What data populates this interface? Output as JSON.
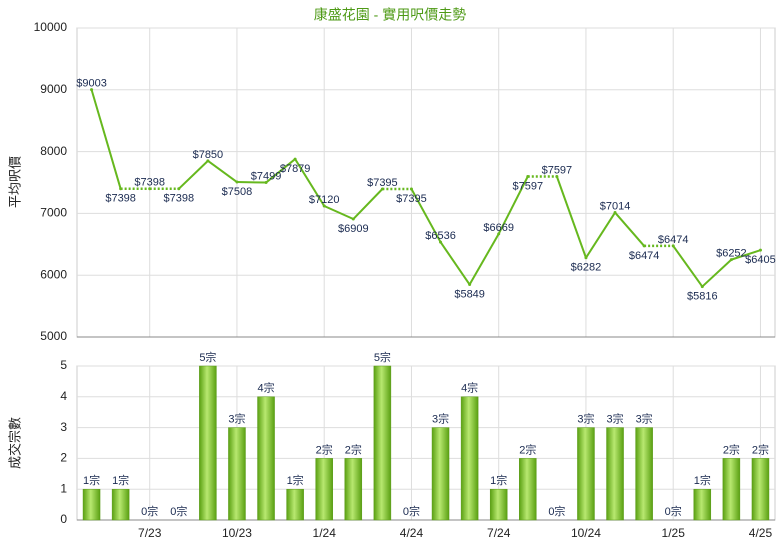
{
  "chart_data": [
    {
      "type": "line",
      "title": "康盛花園 - 實用呎價走勢",
      "y_label": "平均呎價",
      "color": "#66b81e",
      "values": [
        9003,
        7398,
        7398,
        7398,
        7850,
        7508,
        7499,
        7879,
        7120,
        6909,
        7395,
        7395,
        6536,
        5849,
        6669,
        7597,
        7597,
        6282,
        7014,
        6474,
        6474,
        5816,
        6252,
        6405
      ],
      "value_labels": [
        "$9003",
        "$7398",
        "$7398",
        "$7398",
        "$7850",
        "$7508",
        "$7499",
        "$7879",
        "$7120",
        "$6909",
        "$7395",
        "$7395",
        "$6536",
        "$5849",
        "$6669",
        "$7597",
        "$7597",
        "$6282",
        "$7014",
        "$6474",
        "$6474",
        "$5816",
        "$6252",
        "$6405"
      ],
      "ylim": [
        5000,
        10000
      ],
      "yticks": [
        5000,
        6000,
        7000,
        8000,
        9000,
        10000
      ],
      "grid": true
    },
    {
      "type": "bar",
      "y_label": "成交宗數",
      "color": "#7cc22c",
      "categories": [
        null,
        null,
        "7/23",
        null,
        null,
        "10/23",
        null,
        null,
        "1/24",
        null,
        null,
        "4/24",
        null,
        null,
        "7/24",
        null,
        null,
        "10/24",
        null,
        null,
        "1/25",
        null,
        null,
        "4/25"
      ],
      "values": [
        1,
        1,
        0,
        0,
        5,
        3,
        4,
        1,
        2,
        2,
        5,
        0,
        3,
        4,
        1,
        2,
        0,
        3,
        3,
        3,
        0,
        1,
        2,
        2
      ],
      "value_labels": [
        "1宗",
        "1宗",
        "0宗",
        "0宗",
        "5宗",
        "3宗",
        "4宗",
        "1宗",
        "2宗",
        "2宗",
        "5宗",
        "0宗",
        "3宗",
        "4宗",
        "1宗",
        "2宗",
        "0宗",
        "3宗",
        "3宗",
        "3宗",
        "0宗",
        "1宗",
        "2宗",
        "2宗"
      ],
      "ylim": [
        0,
        5
      ],
      "yticks": [
        0,
        1,
        2,
        3,
        4,
        5
      ],
      "grid": true
    }
  ]
}
